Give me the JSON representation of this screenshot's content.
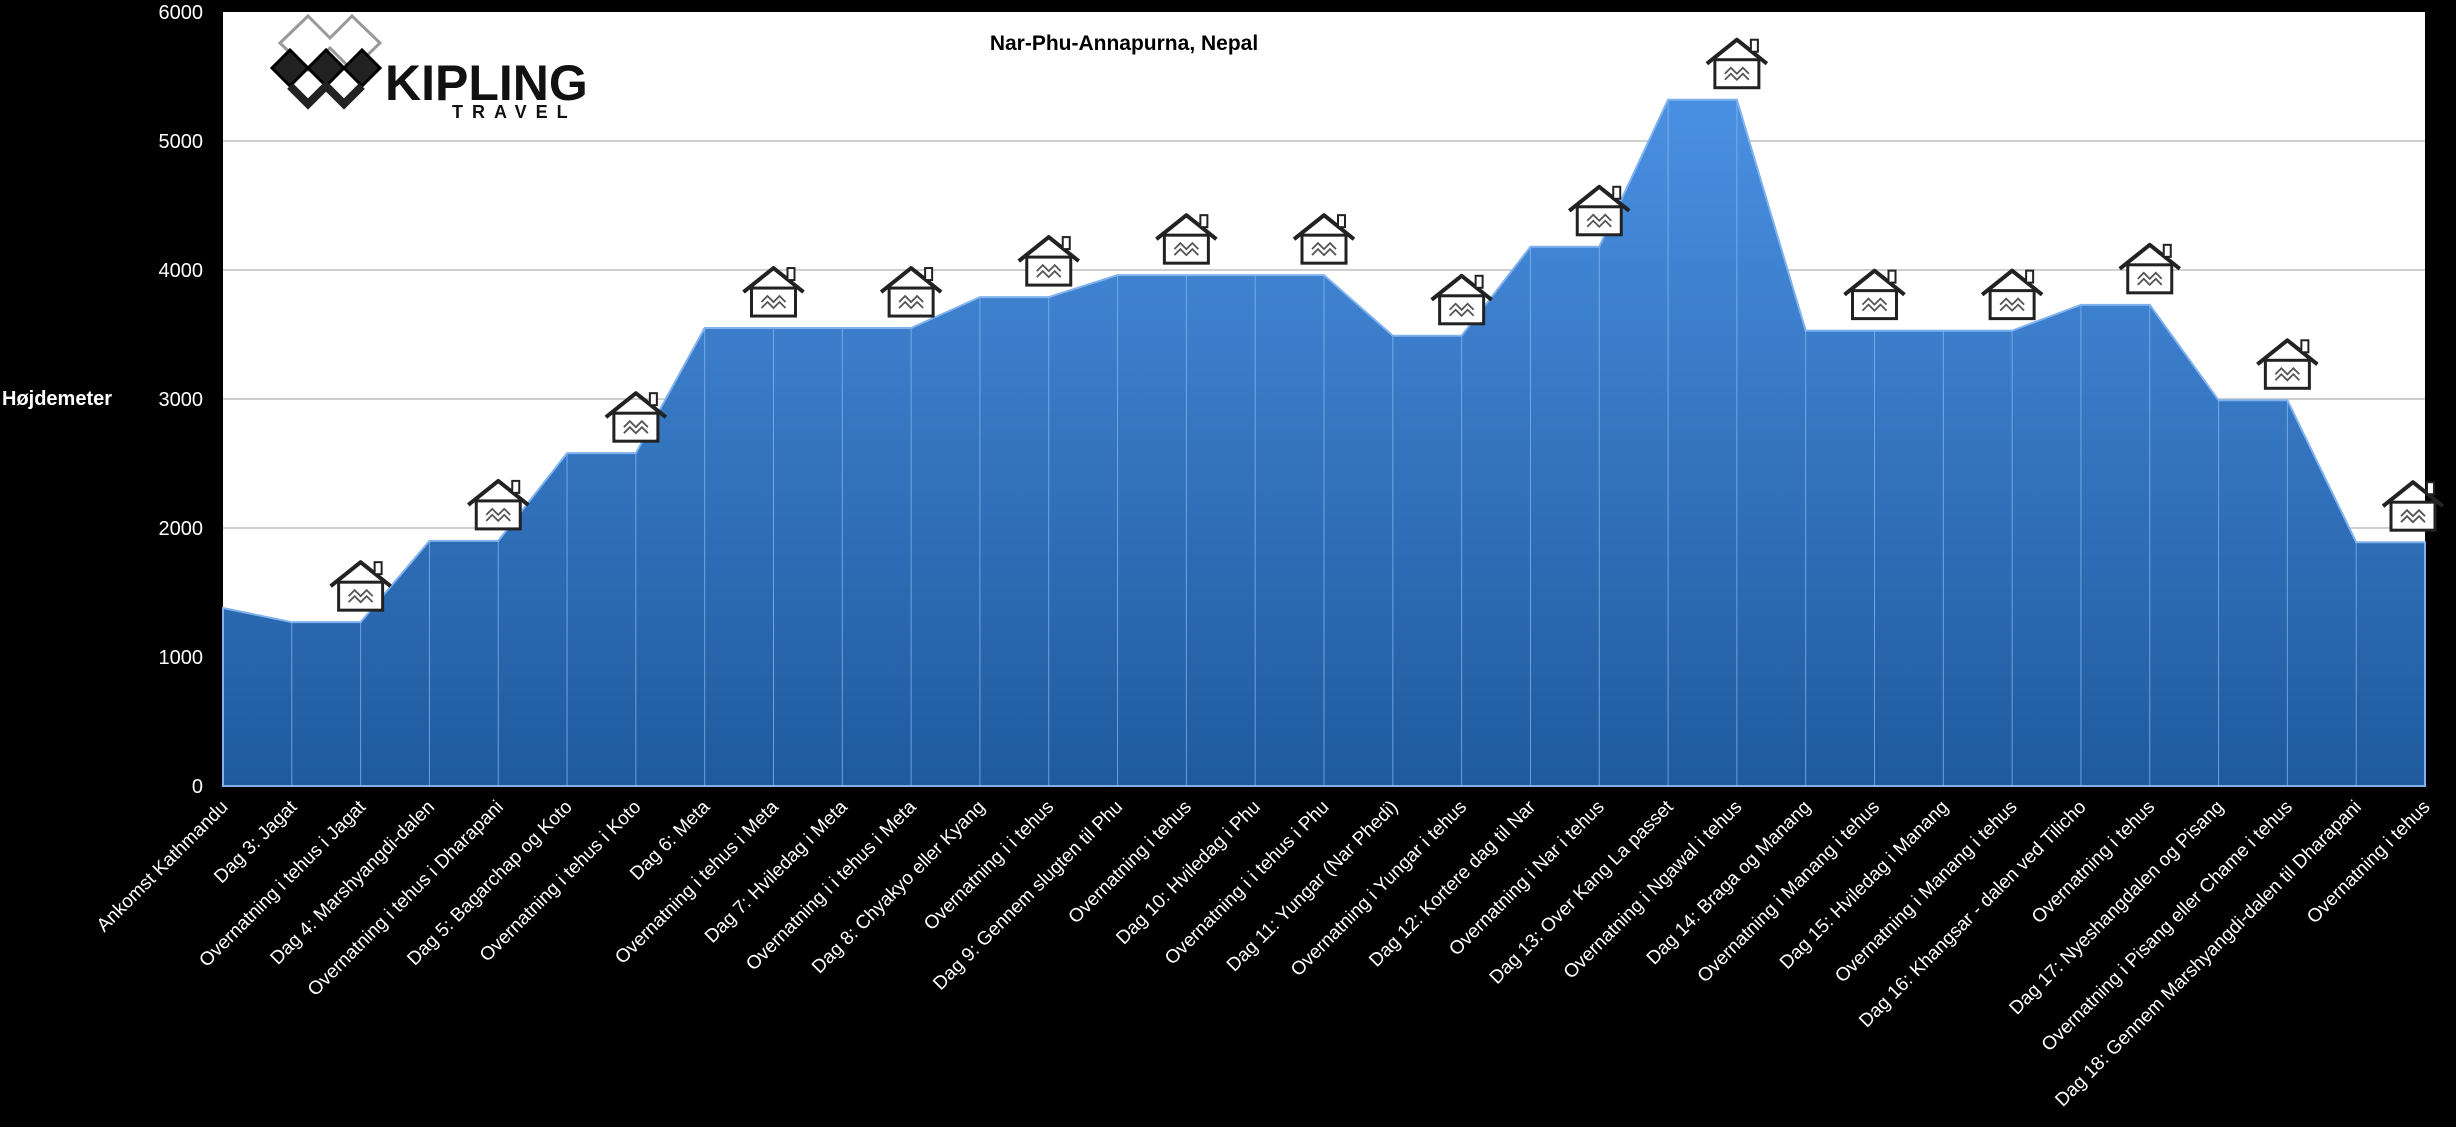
{
  "colors": {
    "area": "#3a7fd0",
    "area_top": "#4a90e2",
    "area_bottom": "#1f5a9e",
    "plot_bg": "#ffffff",
    "page_bg": "#000000",
    "grid": "#bfbfbf"
  },
  "logo": {
    "name": "KIPLING",
    "sub": "TRAVEL",
    "icon": "endless-knot-icon"
  },
  "hut_icon": "hut-icon",
  "chart_data": {
    "type": "area",
    "title": "Nar-Phu-Annapurna, Nepal",
    "ylabel": "Højdemeter",
    "xlabel": "",
    "ylim": [
      0,
      6000
    ],
    "yticks": [
      0,
      1000,
      2000,
      3000,
      4000,
      5000,
      6000
    ],
    "grid": true,
    "categories": [
      "Ankomst Kathmandu",
      "Dag 3: Jagat",
      "Overnatning  i tehus i Jagat",
      "Dag 4: Marshyangdi-dalen",
      "Overnatning i tehus i Dharapani",
      "Dag 5: Bagarchap og Koto",
      "Overnatning i tehus i Koto",
      "Dag 6: Meta",
      "Overnatning i tehus i Meta",
      "Dag 7: Hviledag i Meta",
      "Overnatning i i tehus i Meta",
      "Dag 8: Chyakyo eller Kyang",
      "Overnatning i i tehus",
      "Dag 9: Gennem slugten til Phu",
      "Overnatning i tehus",
      "Dag 10: Hviledag i Phu",
      "Overnatning i i tehus i Phu",
      "Dag 11: Yungar (Nar Phedi)",
      "Overnatning i Yungar i tehus",
      "Dag 12: Kortere dag til Nar",
      "Overnatning i Nar i tehus",
      "Dag 13: Over Kang La passet",
      "Overnatning i Ngawal i tehus",
      "Dag 14: Braga og Manang",
      "Overnatning i Manang i tehus",
      "Dag 15: Hviledag i Manang",
      "Overnatning i Manang i tehus",
      "Dag 16: Khangsar - dalen ved Tilicho",
      "Overnatning i tehus",
      "Dag 17: Nyeshangdalen og Pisang",
      "Overnatning i Pisang eller Chame i tehus",
      "Dag 18: Gennem Marshyangdi-dalen til Dharapani",
      "Overnatning i tehus"
    ],
    "values": [
      1380,
      1270,
      1270,
      1900,
      1900,
      2580,
      2580,
      3550,
      3550,
      3550,
      3550,
      3790,
      3790,
      3960,
      3960,
      3960,
      3960,
      3490,
      3490,
      4180,
      4180,
      5320,
      5320,
      3530,
      3530,
      3530,
      3530,
      3730,
      3730,
      2990,
      2990,
      1890,
      1890
    ],
    "hut_indices": [
      2,
      4,
      6,
      8,
      10,
      12,
      14,
      16,
      18,
      20,
      22,
      24,
      26,
      28,
      30,
      32
    ]
  }
}
